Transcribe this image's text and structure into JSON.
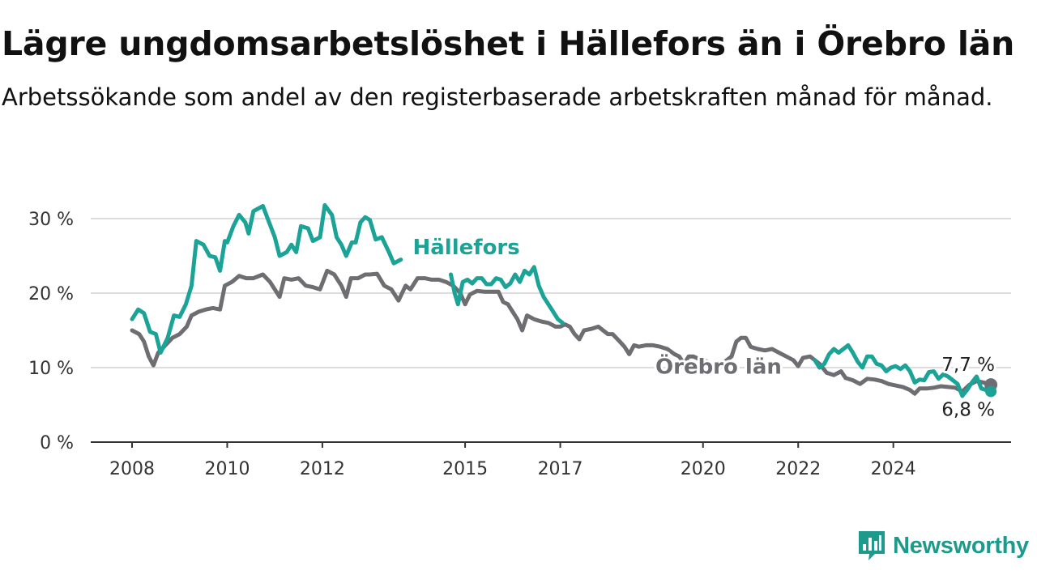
{
  "title": "Lägre ungdomsarbetslöshet i Hällefors än i Örebro län",
  "subtitle": "Arbetssökande som andel av den registerbaserade arbetskraften månad för månad.",
  "brand": {
    "name": "Newsworthy",
    "logo_icon": "bar-chart-speech-bubble-icon"
  },
  "colors": {
    "hallefors": "#1aa396",
    "orebro": "#6e6d71",
    "grid": "#dddddd",
    "axis": "#333333",
    "label": "#333333"
  },
  "chart_data": {
    "type": "line",
    "title": "Lägre ungdomsarbetslöshet i Hällefors än i Örebro län",
    "subtitle": "Arbetssökande som andel av den registerbaserade arbetskraften månad för månad.",
    "xlabel": "",
    "ylabel": "",
    "x_range": [
      2008.0,
      2026.1
    ],
    "ylim": [
      0,
      30
    ],
    "y_ticks": [
      0,
      10,
      20,
      30
    ],
    "y_tick_labels": [
      "0 %",
      "10 %",
      "20 %",
      "30 %"
    ],
    "x_ticks": [
      2008,
      2010,
      2012,
      2015,
      2017,
      2020,
      2022,
      2024
    ],
    "x_tick_labels": [
      "2008",
      "2010",
      "2012",
      "2015",
      "2017",
      "2020",
      "2022",
      "2024"
    ],
    "grid": "horizontal",
    "legend": "inline labels",
    "end_labels": {
      "orebro": "7,7 %",
      "hallefors": "6,8 %"
    },
    "series": [
      {
        "name": "Hällefors",
        "points": [
          [
            2008.0,
            16.5
          ],
          [
            2008.13,
            17.8
          ],
          [
            2008.25,
            17.3
          ],
          [
            2008.38,
            14.8
          ],
          [
            2008.5,
            14.5
          ],
          [
            2008.6,
            12.0
          ],
          [
            2008.75,
            14.0
          ],
          [
            2008.88,
            17.0
          ],
          [
            2009.0,
            16.8
          ],
          [
            2009.13,
            18.5
          ],
          [
            2009.25,
            21.0
          ],
          [
            2009.35,
            27.0
          ],
          [
            2009.5,
            26.5
          ],
          [
            2009.63,
            25.0
          ],
          [
            2009.75,
            24.8
          ],
          [
            2009.85,
            23.0
          ],
          [
            2009.95,
            27.0
          ],
          [
            2010.0,
            26.8
          ],
          [
            2010.13,
            29.0
          ],
          [
            2010.25,
            30.5
          ],
          [
            2010.38,
            29.5
          ],
          [
            2010.45,
            28.0
          ],
          [
            2010.55,
            31.0
          ],
          [
            2010.75,
            31.7
          ],
          [
            2010.85,
            30.0
          ],
          [
            2011.0,
            27.5
          ],
          [
            2011.1,
            25.0
          ],
          [
            2011.25,
            25.5
          ],
          [
            2011.35,
            26.5
          ],
          [
            2011.45,
            25.5
          ],
          [
            2011.55,
            29.0
          ],
          [
            2011.7,
            28.7
          ],
          [
            2011.8,
            27.0
          ],
          [
            2011.95,
            27.5
          ],
          [
            2012.05,
            31.8
          ],
          [
            2012.2,
            30.5
          ],
          [
            2012.3,
            27.5
          ],
          [
            2012.4,
            26.5
          ],
          [
            2012.5,
            25.0
          ],
          [
            2012.62,
            26.8
          ],
          [
            2012.7,
            26.8
          ],
          [
            2012.8,
            29.5
          ],
          [
            2012.9,
            30.2
          ],
          [
            2013.0,
            29.8
          ],
          [
            2013.12,
            27.2
          ],
          [
            2013.25,
            27.5
          ],
          [
            2013.4,
            25.5
          ],
          [
            2013.5,
            24.0
          ],
          [
            2013.65,
            24.5
          ]
        ]
      },
      {
        "name": "Hällefors",
        "points": [
          [
            2014.7,
            22.5
          ],
          [
            2014.78,
            20.0
          ],
          [
            2014.85,
            18.5
          ],
          [
            2014.95,
            21.5
          ],
          [
            2015.05,
            21.8
          ],
          [
            2015.15,
            21.3
          ],
          [
            2015.25,
            22.0
          ],
          [
            2015.35,
            22.0
          ],
          [
            2015.45,
            21.2
          ],
          [
            2015.55,
            21.2
          ],
          [
            2015.65,
            22.0
          ],
          [
            2015.75,
            21.8
          ],
          [
            2015.85,
            20.8
          ],
          [
            2015.95,
            21.3
          ],
          [
            2016.05,
            22.5
          ],
          [
            2016.15,
            21.5
          ],
          [
            2016.25,
            23.0
          ],
          [
            2016.35,
            22.5
          ],
          [
            2016.45,
            23.5
          ],
          [
            2016.55,
            21.0
          ],
          [
            2016.65,
            19.5
          ],
          [
            2016.75,
            18.5
          ],
          [
            2016.85,
            17.5
          ],
          [
            2016.95,
            16.5
          ],
          [
            2017.05,
            16.0
          ]
        ]
      },
      {
        "name": "Hällefors",
        "points": [
          [
            2022.35,
            11.0
          ],
          [
            2022.45,
            10.0
          ],
          [
            2022.55,
            10.5
          ],
          [
            2022.65,
            11.8
          ],
          [
            2022.75,
            12.5
          ],
          [
            2022.85,
            12.0
          ],
          [
            2022.95,
            12.5
          ],
          [
            2023.05,
            13.0
          ],
          [
            2023.15,
            12.0
          ],
          [
            2023.25,
            10.8
          ],
          [
            2023.35,
            10.0
          ],
          [
            2023.45,
            11.5
          ],
          [
            2023.55,
            11.5
          ],
          [
            2023.65,
            10.5
          ],
          [
            2023.75,
            10.3
          ],
          [
            2023.85,
            9.5
          ],
          [
            2023.95,
            10.0
          ],
          [
            2024.05,
            10.2
          ],
          [
            2024.15,
            9.8
          ],
          [
            2024.25,
            10.3
          ],
          [
            2024.35,
            9.5
          ],
          [
            2024.45,
            8.0
          ],
          [
            2024.55,
            8.4
          ],
          [
            2024.65,
            8.3
          ],
          [
            2024.75,
            9.4
          ],
          [
            2024.85,
            9.5
          ],
          [
            2024.95,
            8.5
          ],
          [
            2025.05,
            9.1
          ],
          [
            2025.15,
            8.8
          ],
          [
            2025.25,
            8.3
          ],
          [
            2025.35,
            7.8
          ],
          [
            2025.45,
            6.2
          ],
          [
            2025.55,
            7.0
          ],
          [
            2025.65,
            8.0
          ],
          [
            2025.75,
            8.8
          ],
          [
            2025.85,
            7.2
          ],
          [
            2025.95,
            7.0
          ],
          [
            2026.05,
            6.8
          ]
        ]
      },
      {
        "name": "Örebro län",
        "points": [
          [
            2008.0,
            15.0
          ],
          [
            2008.15,
            14.5
          ],
          [
            2008.25,
            13.5
          ],
          [
            2008.35,
            11.5
          ],
          [
            2008.45,
            10.3
          ],
          [
            2008.55,
            12.0
          ],
          [
            2008.7,
            13.0
          ],
          [
            2008.85,
            14.0
          ],
          [
            2009.0,
            14.5
          ],
          [
            2009.15,
            15.5
          ],
          [
            2009.25,
            17.0
          ],
          [
            2009.4,
            17.5
          ],
          [
            2009.55,
            17.8
          ],
          [
            2009.7,
            18.0
          ],
          [
            2009.85,
            17.8
          ],
          [
            2009.95,
            21.0
          ],
          [
            2010.1,
            21.5
          ],
          [
            2010.25,
            22.3
          ],
          [
            2010.4,
            22.0
          ],
          [
            2010.55,
            22.0
          ],
          [
            2010.75,
            22.5
          ],
          [
            2010.9,
            21.5
          ],
          [
            2011.1,
            19.5
          ],
          [
            2011.2,
            22.0
          ],
          [
            2011.35,
            21.8
          ],
          [
            2011.5,
            22.0
          ],
          [
            2011.65,
            21.0
          ],
          [
            2011.8,
            20.8
          ],
          [
            2011.95,
            20.5
          ],
          [
            2012.1,
            23.0
          ],
          [
            2012.25,
            22.5
          ],
          [
            2012.4,
            21.0
          ],
          [
            2012.5,
            19.5
          ],
          [
            2012.6,
            22.0
          ],
          [
            2012.75,
            22.0
          ],
          [
            2012.9,
            22.5
          ],
          [
            2013.0,
            22.5
          ],
          [
            2013.15,
            22.6
          ],
          [
            2013.3,
            21.0
          ],
          [
            2013.45,
            20.5
          ],
          [
            2013.6,
            19.0
          ],
          [
            2013.75,
            21.0
          ],
          [
            2013.85,
            20.5
          ],
          [
            2014.0,
            22.0
          ],
          [
            2014.15,
            22.0
          ],
          [
            2014.3,
            21.8
          ],
          [
            2014.45,
            21.8
          ],
          [
            2014.6,
            21.5
          ],
          [
            2014.75,
            21.0
          ],
          [
            2014.9,
            20.0
          ],
          [
            2015.0,
            18.5
          ],
          [
            2015.1,
            19.8
          ],
          [
            2015.25,
            20.3
          ],
          [
            2015.4,
            20.2
          ],
          [
            2015.55,
            20.2
          ],
          [
            2015.7,
            20.2
          ],
          [
            2015.8,
            18.8
          ],
          [
            2015.9,
            18.5
          ],
          [
            2016.0,
            17.5
          ],
          [
            2016.1,
            16.5
          ],
          [
            2016.2,
            15.0
          ],
          [
            2016.3,
            17.0
          ],
          [
            2016.45,
            16.5
          ],
          [
            2016.6,
            16.2
          ],
          [
            2016.75,
            16.0
          ],
          [
            2016.9,
            15.5
          ],
          [
            2017.0,
            15.5
          ],
          [
            2017.1,
            15.8
          ],
          [
            2017.2,
            15.5
          ],
          [
            2017.3,
            14.5
          ],
          [
            2017.4,
            13.8
          ],
          [
            2017.5,
            15.0
          ],
          [
            2017.65,
            15.2
          ],
          [
            2017.8,
            15.5
          ],
          [
            2017.9,
            15.0
          ],
          [
            2018.0,
            14.5
          ],
          [
            2018.1,
            14.5
          ],
          [
            2018.25,
            13.5
          ],
          [
            2018.35,
            12.8
          ],
          [
            2018.45,
            11.8
          ],
          [
            2018.55,
            13.0
          ],
          [
            2018.65,
            12.8
          ],
          [
            2018.8,
            13.0
          ],
          [
            2018.95,
            13.0
          ],
          [
            2019.1,
            12.8
          ],
          [
            2019.25,
            12.5
          ],
          [
            2019.4,
            11.8
          ],
          [
            2019.5,
            11.5
          ],
          [
            2019.6,
            10.5
          ],
          [
            2019.7,
            11.5
          ],
          [
            2019.8,
            11.5
          ],
          [
            2019.9,
            11.2
          ],
          [
            2020.0,
            11.0
          ],
          [
            2020.1,
            10.8
          ]
        ]
      },
      {
        "name": "Örebro län",
        "points": [
          [
            2020.35,
            10.3
          ],
          [
            2020.5,
            11.0
          ],
          [
            2020.6,
            11.5
          ],
          [
            2020.7,
            13.5
          ],
          [
            2020.8,
            14.0
          ],
          [
            2020.9,
            14.0
          ],
          [
            2021.0,
            12.8
          ],
          [
            2021.15,
            12.5
          ],
          [
            2021.3,
            12.3
          ],
          [
            2021.45,
            12.5
          ],
          [
            2021.6,
            12.0
          ],
          [
            2021.75,
            11.5
          ],
          [
            2021.9,
            11.0
          ],
          [
            2022.0,
            10.2
          ],
          [
            2022.1,
            11.3
          ],
          [
            2022.25,
            11.5
          ],
          [
            2022.35,
            11.0
          ],
          [
            2022.45,
            10.5
          ],
          [
            2022.6,
            9.3
          ],
          [
            2022.75,
            9.0
          ],
          [
            2022.9,
            9.5
          ],
          [
            2023.0,
            8.6
          ],
          [
            2023.15,
            8.3
          ],
          [
            2023.3,
            7.8
          ],
          [
            2023.45,
            8.5
          ],
          [
            2023.6,
            8.4
          ],
          [
            2023.75,
            8.2
          ],
          [
            2023.9,
            7.8
          ],
          [
            2024.05,
            7.6
          ],
          [
            2024.2,
            7.4
          ],
          [
            2024.35,
            7.0
          ],
          [
            2024.45,
            6.5
          ],
          [
            2024.55,
            7.2
          ],
          [
            2024.7,
            7.2
          ],
          [
            2024.85,
            7.3
          ],
          [
            2025.0,
            7.5
          ],
          [
            2025.15,
            7.4
          ],
          [
            2025.3,
            7.3
          ],
          [
            2025.45,
            6.8
          ],
          [
            2025.6,
            7.7
          ],
          [
            2025.75,
            8.2
          ],
          [
            2025.9,
            8.0
          ],
          [
            2026.05,
            7.7
          ]
        ]
      }
    ],
    "annotations": [
      {
        "text": "Hällefors",
        "series": "Hällefors",
        "x": 2013.9,
        "y": 25.2
      },
      {
        "text": "Örebro län",
        "series": "Örebro län",
        "x": 2019.0,
        "y": 9.2
      }
    ]
  }
}
